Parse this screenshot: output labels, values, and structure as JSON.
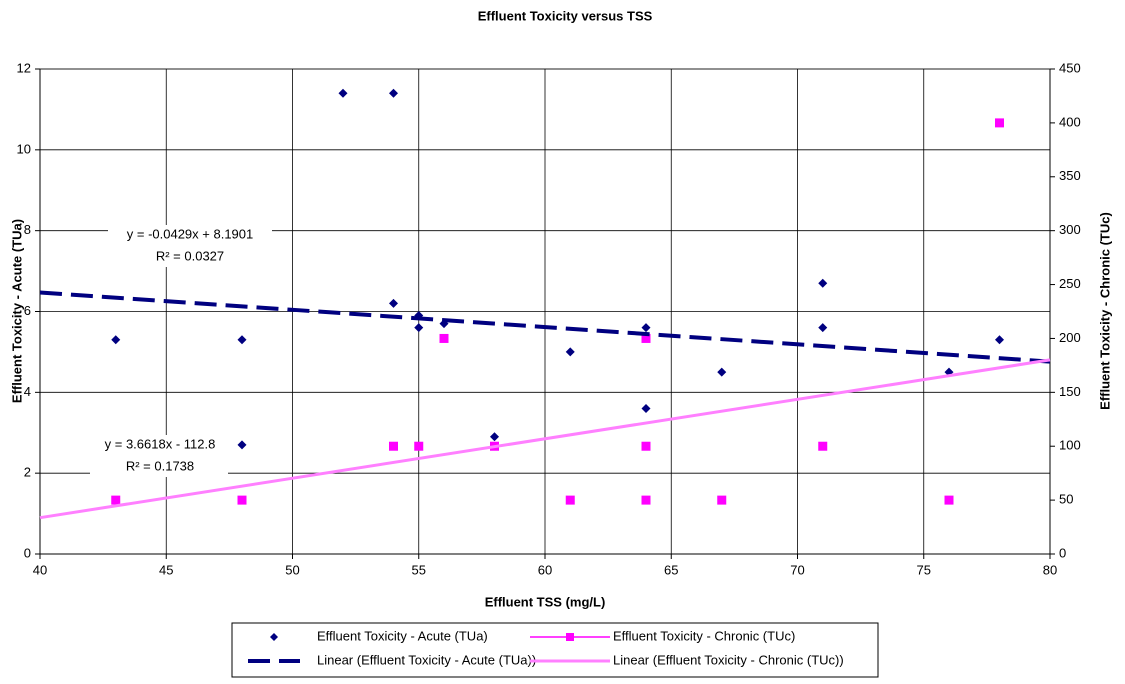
{
  "chart_data": {
    "type": "scatter",
    "title": "Effluent Toxicity versus TSS",
    "x_label": "Effluent TSS (mg/L)",
    "y_label": "Effluent Toxicity - Acute (TUa)",
    "y2_label": "Effluent Toxicity - Chronic (TUc)",
    "xlim": [
      40,
      80
    ],
    "xticks": [
      40,
      45,
      50,
      55,
      60,
      65,
      70,
      75,
      80
    ],
    "ylim": [
      0,
      12
    ],
    "yticks": [
      0,
      2,
      4,
      6,
      8,
      10,
      12
    ],
    "y2lim": [
      0,
      450
    ],
    "y2ticks": [
      0,
      50,
      100,
      150,
      200,
      250,
      300,
      350,
      400,
      450
    ],
    "grid": true,
    "series": [
      {
        "name": "Effluent Toxicity - Acute (TUa)",
        "color": "#000080",
        "marker": "diamond",
        "axis": "y",
        "x": [
          43,
          48,
          48,
          52,
          54,
          54,
          55,
          55,
          56,
          58,
          61,
          64,
          64,
          67,
          71,
          71,
          76,
          78
        ],
        "values": [
          5.3,
          5.3,
          2.7,
          11.4,
          11.4,
          6.2,
          5.9,
          5.6,
          5.7,
          2.9,
          5.0,
          5.6,
          3.6,
          4.5,
          6.7,
          5.6,
          4.5,
          5.3
        ]
      },
      {
        "name": "Effluent Toxicity - Chronic (TUc)",
        "color": "#ff00ff",
        "marker": "square",
        "axis": "y2",
        "x": [
          43,
          48,
          54,
          55,
          56,
          58,
          61,
          64,
          64,
          64,
          67,
          71,
          76,
          78
        ],
        "values": [
          50,
          50,
          100,
          100,
          200,
          100,
          50,
          200,
          100,
          50,
          50,
          100,
          50,
          400
        ]
      },
      {
        "name": "Linear (Effluent Toxicity - Acute (TUa))",
        "color": "#000080",
        "marker": "none",
        "dashed": true,
        "axis": "y",
        "x": [
          40,
          80
        ],
        "values": [
          6.47,
          4.76
        ]
      },
      {
        "name": "Linear (Effluent Toxicity - Chronic (TUc))",
        "color": "#ff80ff",
        "marker": "none",
        "dashed": false,
        "axis": "y2",
        "x": [
          40,
          80
        ],
        "values": [
          33.7,
          180.1
        ]
      }
    ],
    "annotations": [
      "y = -0.0429x + 8.1901",
      "R² = 0.0327",
      "y = 3.6618x - 112.8",
      "R² = 0.1738"
    ]
  }
}
